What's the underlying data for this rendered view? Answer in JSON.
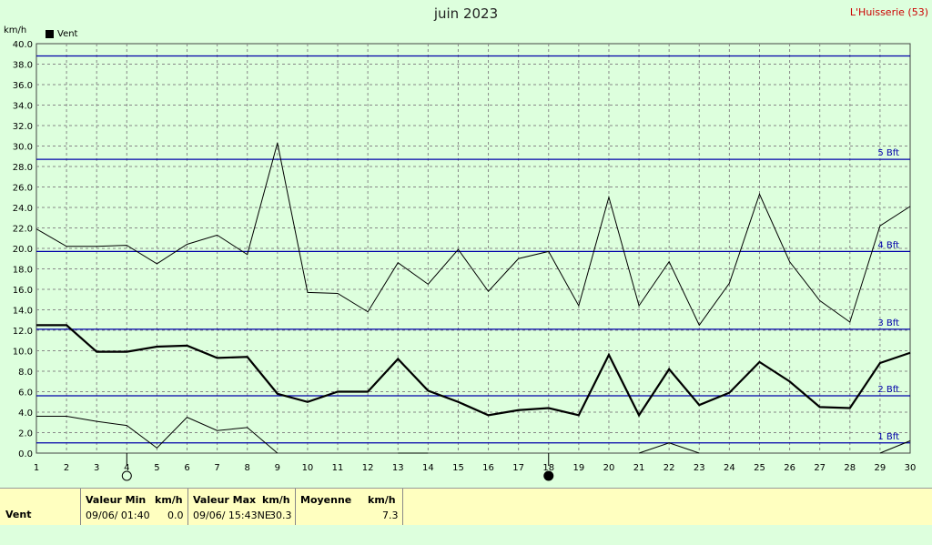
{
  "chart_data": {
    "type": "line",
    "title": "juin 2023",
    "station": "L'Huisserie (53)",
    "ylabel": "km/h",
    "legend": [
      "Vent"
    ],
    "ylim": [
      0,
      40
    ],
    "yticks": [
      "0.0",
      "2.0",
      "4.0",
      "6.0",
      "8.0",
      "10.0",
      "12.0",
      "14.0",
      "16.0",
      "18.0",
      "20.0",
      "22.0",
      "24.0",
      "26.0",
      "28.0",
      "30.0",
      "32.0",
      "34.0",
      "36.0",
      "38.0",
      "40.0"
    ],
    "x": [
      1,
      2,
      3,
      4,
      5,
      6,
      7,
      8,
      9,
      10,
      11,
      12,
      13,
      14,
      15,
      16,
      17,
      18,
      19,
      20,
      21,
      22,
      23,
      24,
      25,
      26,
      27,
      28,
      29,
      30
    ],
    "series": [
      {
        "name": "max",
        "values": [
          21.9,
          20.2,
          20.2,
          20.3,
          18.5,
          20.4,
          21.3,
          19.4,
          30.3,
          15.7,
          15.6,
          13.8,
          18.6,
          16.5,
          19.9,
          15.8,
          19.0,
          19.7,
          14.4,
          25.0,
          14.4,
          18.7,
          12.5,
          16.6,
          25.3,
          18.7,
          14.9,
          12.8,
          22.2,
          24.1
        ]
      },
      {
        "name": "moyenne",
        "values": [
          12.5,
          12.5,
          9.9,
          9.9,
          10.4,
          10.5,
          9.3,
          9.4,
          5.8,
          5.0,
          6.0,
          6.0,
          9.2,
          6.1,
          5.0,
          3.7,
          4.2,
          4.4,
          3.7,
          9.6,
          3.7,
          8.2,
          4.7,
          5.9,
          8.9,
          7.0,
          4.5,
          4.4,
          8.8,
          9.8
        ]
      },
      {
        "name": "min",
        "values": [
          3.6,
          3.6,
          3.1,
          2.7,
          0.5,
          3.5,
          2.2,
          2.5,
          0.0,
          null,
          null,
          null,
          0.0,
          0.0,
          null,
          null,
          null,
          null,
          null,
          null,
          0.0,
          1.0,
          0.0,
          null,
          null,
          null,
          null,
          null,
          0.0,
          1.2
        ]
      }
    ],
    "beaufort": [
      {
        "label": "1 Bft",
        "value": 1.0
      },
      {
        "label": "2 Bft",
        "value": 5.6
      },
      {
        "label": "3 Bft",
        "value": 12.1
      },
      {
        "label": "4 Bft",
        "value": 19.7
      },
      {
        "label": "5 Bft",
        "value": 28.7
      },
      {
        "label": "",
        "value": 38.8
      }
    ],
    "moon_markers": [
      {
        "day": 4,
        "phase": "full"
      },
      {
        "day": 18,
        "phase": "new"
      }
    ],
    "grid": true,
    "legend_position": "top-left"
  },
  "summary": {
    "row_label": "Vent",
    "min_header": "Valeur Min",
    "min_unit": "km/h",
    "min_time": "09/06/  01:40",
    "min_value": "0.0",
    "max_header": "Valeur Max",
    "max_unit": "km/h",
    "max_time": "09/06/  15:43NE",
    "max_value": "30.3",
    "avg_header": "Moyenne",
    "avg_unit": "km/h",
    "avg_value": "7.3"
  }
}
